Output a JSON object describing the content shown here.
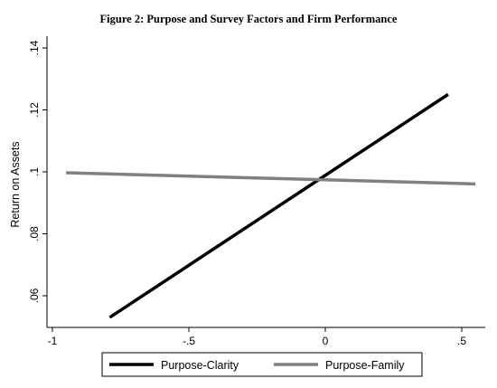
{
  "chart_data": {
    "type": "line",
    "title": "Figure 2: Purpose and Survey Factors and Firm Performance",
    "ylabel": "Return on Assets",
    "xlabel": "",
    "xlim": [
      -1.0,
      0.58
    ],
    "ylim": [
      0.05,
      0.14
    ],
    "xticks": [
      -1,
      -0.5,
      0,
      0.5
    ],
    "xtick_labels": [
      "-1",
      "-.5",
      "0",
      ".5"
    ],
    "yticks": [
      0.06,
      0.08,
      0.1,
      0.12,
      0.14
    ],
    "ytick_labels": [
      ".06",
      ".08",
      ".1",
      ".12",
      ".14"
    ],
    "grid": false,
    "legend_position": "bottom",
    "series": [
      {
        "name": "Purpose-Clarity",
        "color": "#000000",
        "x": [
          -0.79,
          0.45
        ],
        "y": [
          0.053,
          0.125
        ]
      },
      {
        "name": "Purpose-Family",
        "color": "#808080",
        "x": [
          -0.95,
          0.55
        ],
        "y": [
          0.0997,
          0.0961
        ]
      }
    ]
  }
}
